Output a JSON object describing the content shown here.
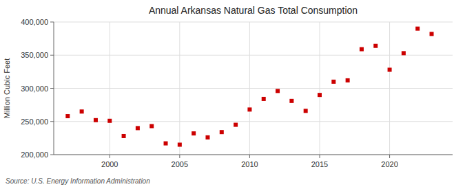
{
  "chart_data": {
    "type": "scatter",
    "title": "Annual Arkansas Natural Gas Total Consumption",
    "ylabel": "Million Cubic Feet",
    "annotations": [
      "Source: U.S. Energy Information Administration"
    ],
    "x": [
      1997,
      1998,
      1999,
      2000,
      2001,
      2002,
      2003,
      2004,
      2005,
      2006,
      2007,
      2008,
      2009,
      2010,
      2011,
      2012,
      2013,
      2014,
      2015,
      2016,
      2017,
      2018,
      2019,
      2020,
      2021,
      2022,
      2023
    ],
    "values": [
      258000,
      265000,
      252000,
      251000,
      228000,
      240000,
      243000,
      217000,
      215000,
      232000,
      226000,
      234000,
      245000,
      268000,
      284000,
      296000,
      281000,
      266000,
      290000,
      310000,
      312000,
      359000,
      364000,
      328000,
      353000,
      390000,
      382000
    ],
    "color": "#cc0000",
    "marker": "square",
    "xlim": [
      1996.0,
      2024.5
    ],
    "xticks": [
      2000,
      2005,
      2010,
      2015,
      2020
    ],
    "ylim": [
      200000,
      400000
    ],
    "yticks": [
      {
        "value": 200000,
        "label": "200,000"
      },
      {
        "value": 250000,
        "label": "250,000"
      },
      {
        "value": 300000,
        "label": "300,000"
      },
      {
        "value": 350000,
        "label": "350,000"
      },
      {
        "value": 400000,
        "label": "400,000"
      }
    ],
    "grid": true
  }
}
